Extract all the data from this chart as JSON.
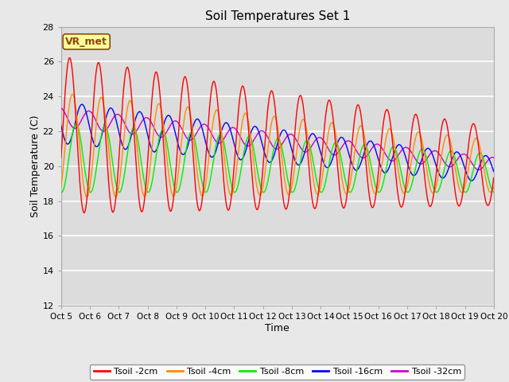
{
  "title": "Soil Temperatures Set 1",
  "xlabel": "Time",
  "ylabel": "Soil Temperature (C)",
  "ylim": [
    12,
    28
  ],
  "xlim": [
    0,
    15
  ],
  "background_color": "#e8e8e8",
  "plot_bg_color": "#dcdcdc",
  "annotation_text": "VR_met",
  "annotation_bg": "#ffff99",
  "annotation_border": "#8B4513",
  "colors": {
    "Tsoil -2cm": "#ff0000",
    "Tsoil -4cm": "#ff8c00",
    "Tsoil -8cm": "#00ee00",
    "Tsoil -16cm": "#0000ff",
    "Tsoil -32cm": "#cc00cc"
  },
  "xtick_labels": [
    "Oct 5",
    "Oct 6",
    "Oct 7",
    "Oct 8",
    "Oct 9",
    "Oct 10",
    "Oct 11",
    "Oct 12",
    "Oct 13",
    "Oct 14",
    "Oct 15",
    "Oct 16",
    "Oct 17",
    "Oct 18",
    "Oct 19",
    "Oct 20"
  ],
  "ytick_labels": [
    12,
    14,
    16,
    18,
    20,
    22,
    24,
    26,
    28
  ],
  "grid_color": "#ffffff",
  "spine_color": "#aaaaaa"
}
